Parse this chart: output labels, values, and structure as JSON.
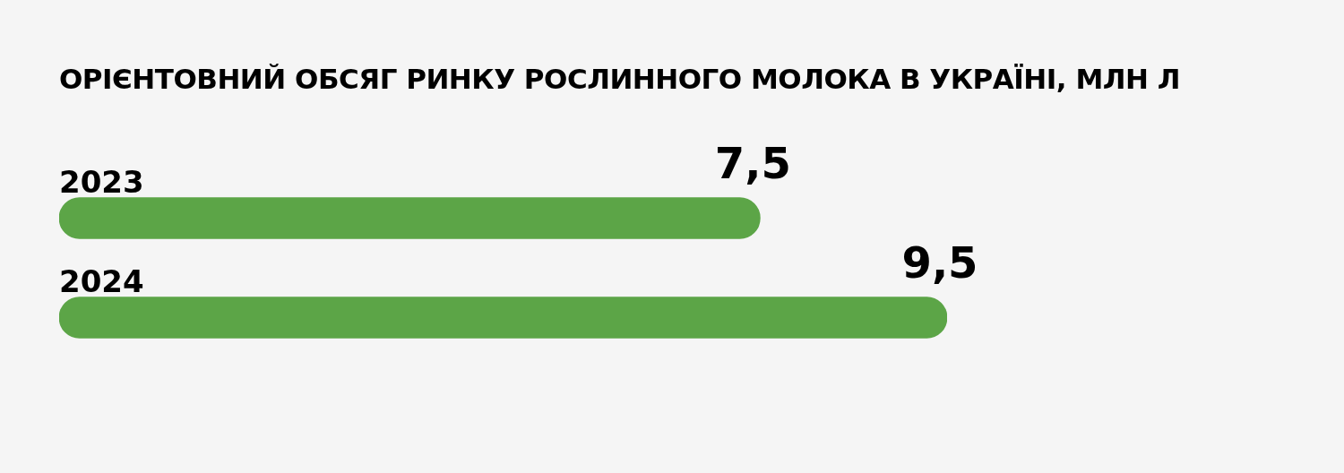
{
  "chart_data": {
    "type": "bar",
    "orientation": "horizontal",
    "title": "ОРІЄНТОВНИЙ ОБСЯГ РИНКУ РОСЛИННОГО МОЛОКА В УКРАЇНІ, МЛН Л",
    "categories": [
      "2023",
      "2024"
    ],
    "values": [
      7.5,
      9.5
    ],
    "value_labels": [
      "7,5",
      "9,5"
    ],
    "color": "#5ca547",
    "legend": false
  }
}
